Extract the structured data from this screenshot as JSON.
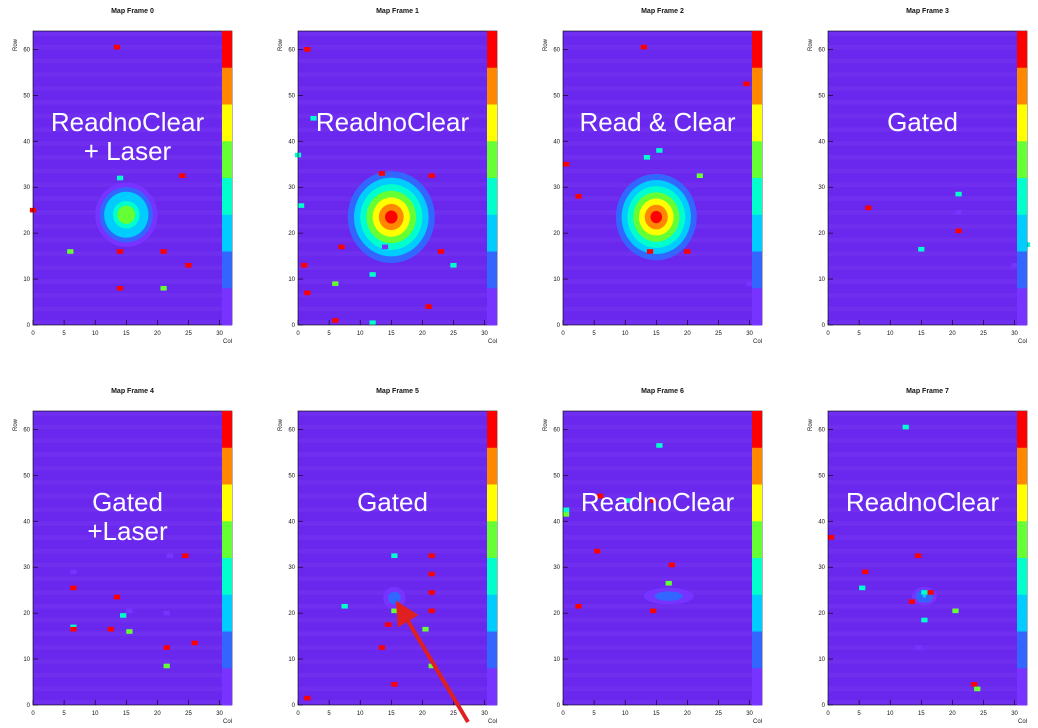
{
  "chart_data": {
    "type": "heatmap",
    "xlabel": "Col",
    "ylabel": "Row",
    "xlim": [
      0,
      32
    ],
    "ylim": [
      0,
      64
    ],
    "x_ticks": [
      0,
      5,
      10,
      15,
      20,
      25,
      30
    ],
    "y_ticks": [
      0,
      10,
      20,
      30,
      40,
      50,
      60
    ],
    "colorscale": [
      "#ff0000",
      "#ff8800",
      "#ffff00",
      "#66ff33",
      "#00ffcc",
      "#00ccff",
      "#3366ff",
      "#7733ff"
    ],
    "background_color": "#6a28ee",
    "frames": [
      {
        "title": "Map Frame 0",
        "label_lines": [
          "ReadnoClear",
          "+ Laser"
        ],
        "spot": {
          "cx": 15,
          "cy": 24,
          "rx": 5,
          "ry": 3.5,
          "peak": 0.6
        },
        "hits": [
          [
            13.5,
            60.5,
            1
          ],
          [
            24,
            32.5,
            1
          ],
          [
            14,
            32,
            0.4
          ],
          [
            6,
            16,
            0.6
          ],
          [
            14,
            16,
            1
          ],
          [
            21,
            16,
            1
          ],
          [
            25,
            13,
            1
          ],
          [
            14,
            8,
            1
          ],
          [
            21,
            8,
            0.6
          ],
          [
            0,
            25,
            1
          ]
        ]
      },
      {
        "title": "Map Frame 1",
        "label_lines": [
          "ReadnoClear"
        ],
        "spot": {
          "cx": 15,
          "cy": 23.5,
          "rx": 7,
          "ry": 5,
          "peak": 1
        },
        "hits": [
          [
            1.5,
            60,
            1
          ],
          [
            31.5,
            60,
            0.1
          ],
          [
            2.5,
            45,
            0.4
          ],
          [
            0,
            37,
            0.4
          ],
          [
            13.5,
            33,
            1
          ],
          [
            21.5,
            32.5,
            1
          ],
          [
            0.5,
            26,
            0.4
          ],
          [
            7,
            17,
            1
          ],
          [
            14,
            17,
            0.1
          ],
          [
            23,
            16,
            1
          ],
          [
            25,
            13,
            0.4
          ],
          [
            1,
            13,
            1
          ],
          [
            12,
            11,
            0.4
          ],
          [
            6,
            9,
            0.6
          ],
          [
            1.5,
            7,
            1
          ],
          [
            21,
            4,
            1
          ],
          [
            6,
            1,
            1
          ],
          [
            12,
            0.5,
            0.4
          ]
        ]
      },
      {
        "title": "Map Frame 2",
        "label_lines": [
          "Read & Clear"
        ],
        "spot": {
          "cx": 15,
          "cy": 23.5,
          "rx": 6.5,
          "ry": 4.7,
          "peak": 1
        },
        "hits": [
          [
            13,
            60.5,
            1
          ],
          [
            29.5,
            52.5,
            1
          ],
          [
            31.5,
            50,
            0.1
          ],
          [
            13.5,
            36.5,
            0.4
          ],
          [
            15.5,
            38,
            0.4
          ],
          [
            0.5,
            35,
            1
          ],
          [
            2.5,
            28,
            1
          ],
          [
            22,
            32.5,
            0.6
          ],
          [
            14,
            16,
            1
          ],
          [
            20,
            16,
            1
          ],
          [
            30,
            9,
            0.1
          ]
        ]
      },
      {
        "title": "Map Frame 3",
        "label_lines": [
          "Gated"
        ],
        "spot": null,
        "hits": [
          [
            6.5,
            25.5,
            1
          ],
          [
            21,
            28.5,
            0.4
          ],
          [
            21,
            24.5,
            0.1
          ],
          [
            21,
            20.5,
            1
          ],
          [
            15,
            16.5,
            0.4
          ],
          [
            32,
            17.5,
            0.4
          ],
          [
            30,
            13,
            0.1
          ]
        ]
      },
      {
        "title": "Map Frame 4",
        "label_lines": [
          "Gated",
          "+Laser"
        ],
        "spot": null,
        "hits": [
          [
            6.5,
            29,
            0.1
          ],
          [
            6.5,
            25.5,
            1
          ],
          [
            22,
            32.5,
            0.1
          ],
          [
            24.5,
            32.5,
            1
          ],
          [
            13.5,
            23.5,
            1
          ],
          [
            14.5,
            19.5,
            0.4
          ],
          [
            15.5,
            20.5,
            0.1
          ],
          [
            21.5,
            20,
            0.1
          ],
          [
            6.5,
            17,
            0.4
          ],
          [
            6.5,
            16.5,
            1
          ],
          [
            12.5,
            16.5,
            1
          ],
          [
            15.5,
            16,
            0.6
          ],
          [
            26,
            13.5,
            1
          ],
          [
            21.5,
            12.5,
            1
          ],
          [
            21.5,
            8.5,
            0.6
          ]
        ]
      },
      {
        "title": "Map Frame 5",
        "label_lines": [
          "Gated"
        ],
        "spot": {
          "cx": 15.5,
          "cy": 23.3,
          "rx": 1.8,
          "ry": 1.2,
          "peak": 0.25
        },
        "hits": [
          [
            15.5,
            32.5,
            0.4
          ],
          [
            21.5,
            32.5,
            1
          ],
          [
            21.5,
            28.5,
            1
          ],
          [
            21.5,
            24.5,
            1
          ],
          [
            21.5,
            20.5,
            1
          ],
          [
            15.5,
            20.5,
            0.6
          ],
          [
            7.5,
            21.5,
            0.4
          ],
          [
            14.5,
            17.5,
            1
          ],
          [
            20.5,
            16.5,
            0.6
          ],
          [
            13.5,
            12.5,
            1
          ],
          [
            21.5,
            8.5,
            0.6
          ],
          [
            15.5,
            4.5,
            1
          ],
          [
            1.5,
            1.5,
            1
          ]
        ]
      },
      {
        "title": "Map Frame 6",
        "label_lines": [
          "ReadnoClear"
        ],
        "spot": {
          "cx": 17,
          "cy": 23.7,
          "rx": 4,
          "ry": 0.9,
          "peak": 0.22
        },
        "hits": [
          [
            15.5,
            56.5,
            0.4
          ],
          [
            6,
            45.5,
            1
          ],
          [
            14.5,
            44.5,
            1
          ],
          [
            10.5,
            44.5,
            0.4
          ],
          [
            0.5,
            42.5,
            0.4
          ],
          [
            0.5,
            41.5,
            0.6
          ],
          [
            5.5,
            33.5,
            1
          ],
          [
            17.5,
            30.5,
            1
          ],
          [
            17,
            26.5,
            0.6
          ],
          [
            2.5,
            21.5,
            1
          ],
          [
            14.5,
            20.5,
            1
          ]
        ]
      },
      {
        "title": "Map Frame 7",
        "label_lines": [
          "ReadnoClear"
        ],
        "spot": {
          "cx": 15.5,
          "cy": 23.7,
          "rx": 2,
          "ry": 1,
          "peak": 0.28
        },
        "hits": [
          [
            12.5,
            60.5,
            0.4
          ],
          [
            0.5,
            36.5,
            1
          ],
          [
            6,
            29,
            1
          ],
          [
            14.5,
            32.5,
            1
          ],
          [
            5.5,
            25.5,
            0.4
          ],
          [
            13.5,
            22.5,
            1
          ],
          [
            15.5,
            24.5,
            0.4
          ],
          [
            16.5,
            24.5,
            1
          ],
          [
            20.5,
            20.5,
            0.6
          ],
          [
            15.5,
            18.5,
            0.4
          ],
          [
            31.5,
            17.5,
            1
          ],
          [
            14.5,
            12.5,
            0.1
          ],
          [
            23.5,
            4.5,
            1
          ],
          [
            24,
            3.5,
            0.6
          ]
        ]
      }
    ]
  }
}
